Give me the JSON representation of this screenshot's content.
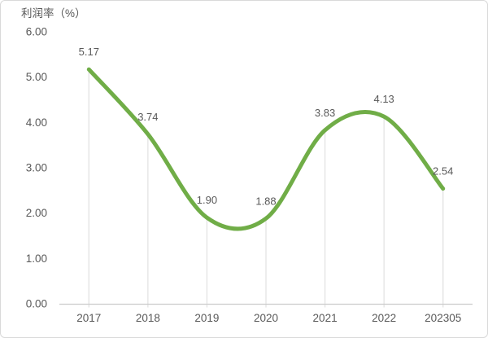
{
  "chart_data": {
    "type": "line",
    "title": "利润率（%）",
    "categories": [
      "2017",
      "2018",
      "2019",
      "2020",
      "2021",
      "2022",
      "202305"
    ],
    "values": [
      5.17,
      3.74,
      1.9,
      1.88,
      3.83,
      4.13,
      2.54
    ],
    "data_labels": [
      "5.17",
      "3.74",
      "1.90",
      "1.88",
      "3.83",
      "4.13",
      "2.54"
    ],
    "yticks": [
      "6.00",
      "5.00",
      "4.00",
      "3.00",
      "2.00",
      "1.00",
      "0.00"
    ],
    "ytick_values": [
      6,
      5,
      4,
      3,
      2,
      1,
      0
    ],
    "ylim": [
      0,
      6
    ],
    "smooth": true,
    "legend": "none",
    "grid": "vertical-drop-lines",
    "line_color": "#70AD47",
    "line_width": 5,
    "text_color": "#595959",
    "axis_color": "#cccccc",
    "dropline_color": "#e3e3e3",
    "border_color": "#d9d9d9",
    "background": "#ffffff"
  }
}
